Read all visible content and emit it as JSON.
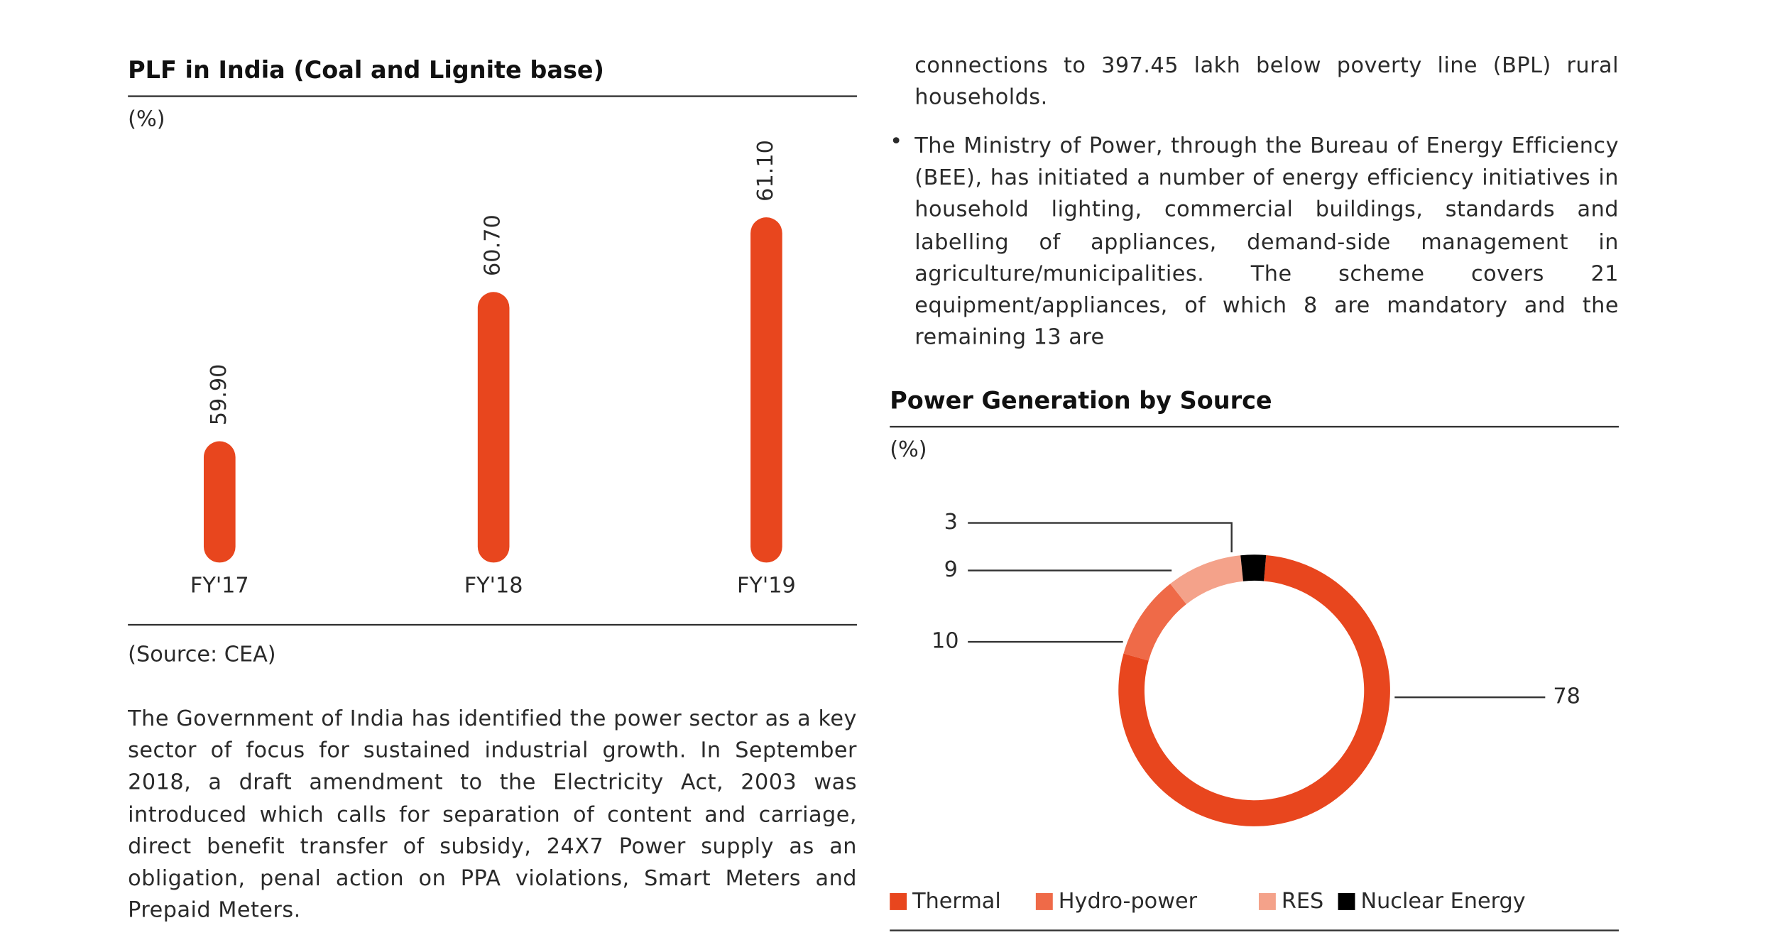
{
  "chart_data": [
    {
      "type": "bar",
      "title": "PLF in India (Coal and Lignite base)",
      "unit_label": "(%)",
      "categories": [
        "FY'17",
        "FY'18",
        "FY'19"
      ],
      "values": [
        59.9,
        60.7,
        61.1
      ],
      "value_labels": [
        "59.90",
        "60.70",
        "61.10"
      ],
      "color": "#e8461e",
      "ylim": [
        59.25,
        61.1
      ],
      "source": "(Source: CEA)"
    },
    {
      "type": "donut",
      "title": "Power Generation by Source",
      "unit_label": "(%)",
      "categories": [
        "Thermal",
        "Hydro-power",
        "RES",
        "Nuclear Energy"
      ],
      "values": [
        78,
        10,
        9,
        3
      ],
      "colors": [
        "#e8461e",
        "#ef6a48",
        "#f4a28a",
        "#000000"
      ]
    }
  ],
  "text": {
    "left_paragraph": "The Government of India has identified the power sector as a key sector of focus for sustained industrial growth. In September 2018, a draft amendment to the Electricity Act, 2003 was introduced which calls for separation of content and carriage, direct benefit transfer of subsidy, 24X7 Power supply as an obligation, penal action on PPA violations, Smart Meters and Prepaid Meters.",
    "right_intro": "connections to 397.45 lakh below poverty line (BPL) rural households.",
    "right_bullet": "The Ministry of Power, through the Bureau of Energy Efficiency (BEE), has initiated a number of energy efficiency initiatives in household lighting, commercial buildings, standards and labelling of appliances, demand-side management in agriculture/municipalities. The scheme covers 21 equipment/appliances, of which 8 are mandatory and the remaining 13 are"
  }
}
